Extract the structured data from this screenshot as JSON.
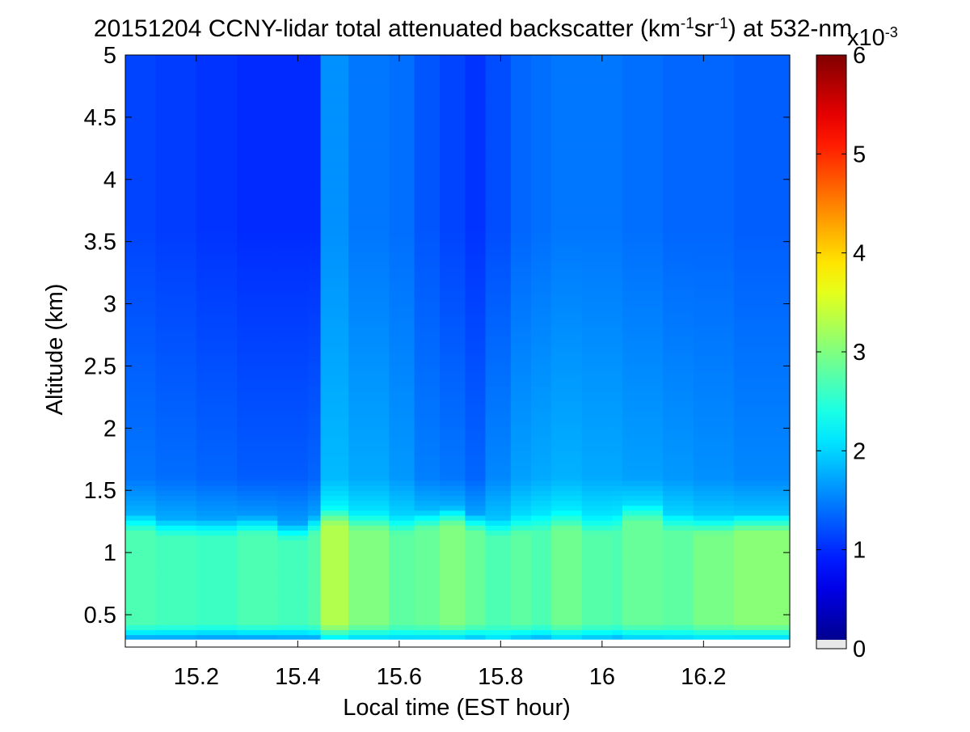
{
  "chart_data": {
    "type": "heatmap",
    "title_parts": {
      "prefix": "20151204 CCNY-lidar total attenuated backscatter (km",
      "sup1": "-1",
      "mid": "sr",
      "sup2": "-1",
      "suffix": ") at 532-nm"
    },
    "xlabel": "Local time (EST hour)",
    "ylabel": "Altitude (km)",
    "xlim": [
      15.06,
      16.37
    ],
    "ylim": [
      0.24,
      5
    ],
    "x_ticks": [
      "15.2",
      "15.4",
      "15.6",
      "15.8",
      "16",
      "16.2"
    ],
    "x_tick_values": [
      15.2,
      15.4,
      15.6,
      15.8,
      16.0,
      16.2
    ],
    "y_ticks": [
      "0.5",
      "1",
      "1.5",
      "2",
      "2.5",
      "3",
      "3.5",
      "4",
      "4.5",
      "5"
    ],
    "y_tick_values": [
      0.5,
      1,
      1.5,
      2,
      2.5,
      3,
      3.5,
      4,
      4.5,
      5
    ],
    "data_bottom_km": 0.3,
    "colormap": "jet",
    "colorbar": {
      "clim": [
        0,
        0.006
      ],
      "ticks": [
        "0",
        "1",
        "2",
        "3",
        "4",
        "5",
        "6"
      ],
      "tick_values": [
        0,
        1,
        2,
        3,
        4,
        5,
        6
      ],
      "exponent_base": "x10",
      "exponent": "-3",
      "below_min_color": "#e8e8e8"
    },
    "profile_units": "x10^-3 km^-1 sr^-1",
    "time_profiles": [
      {
        "t": 15.06,
        "near": 1.6,
        "pbl": 2.7,
        "top": 1.22,
        "free": 1.45,
        "aloft": 1.15
      },
      {
        "t": 15.12,
        "near": 1.6,
        "pbl": 2.65,
        "top": 1.18,
        "free": 1.4,
        "aloft": 1.1
      },
      {
        "t": 15.2,
        "near": 1.55,
        "pbl": 2.6,
        "top": 1.18,
        "free": 1.35,
        "aloft": 1.05
      },
      {
        "t": 15.28,
        "near": 1.55,
        "pbl": 2.7,
        "top": 1.2,
        "free": 1.3,
        "aloft": 1.0
      },
      {
        "t": 15.36,
        "near": 1.6,
        "pbl": 2.65,
        "top": 1.15,
        "free": 1.3,
        "aloft": 1.0
      },
      {
        "t": 15.42,
        "near": 1.6,
        "pbl": 2.75,
        "top": 1.2,
        "free": 1.35,
        "aloft": 1.0
      },
      {
        "t": 15.445,
        "near": 2.0,
        "pbl": 3.3,
        "top": 1.27,
        "free": 1.85,
        "aloft": 1.6
      },
      {
        "t": 15.5,
        "near": 1.9,
        "pbl": 3.0,
        "top": 1.23,
        "free": 1.75,
        "aloft": 1.45
      },
      {
        "t": 15.58,
        "near": 1.9,
        "pbl": 2.8,
        "top": 1.2,
        "free": 1.65,
        "aloft": 1.4
      },
      {
        "t": 15.63,
        "near": 1.9,
        "pbl": 2.85,
        "top": 1.24,
        "free": 1.5,
        "aloft": 1.25
      },
      {
        "t": 15.68,
        "near": 1.9,
        "pbl": 3.0,
        "top": 1.27,
        "free": 1.45,
        "aloft": 1.15
      },
      {
        "t": 15.73,
        "near": 1.8,
        "pbl": 2.85,
        "top": 1.22,
        "free": 1.35,
        "aloft": 1.05
      },
      {
        "t": 15.77,
        "near": 2.0,
        "pbl": 2.7,
        "top": 1.18,
        "free": 1.55,
        "aloft": 1.2
      },
      {
        "t": 15.82,
        "near": 1.8,
        "pbl": 2.8,
        "top": 1.2,
        "free": 1.7,
        "aloft": 1.35
      },
      {
        "t": 15.86,
        "near": 1.7,
        "pbl": 2.7,
        "top": 1.22,
        "free": 1.75,
        "aloft": 1.4
      },
      {
        "t": 15.9,
        "near": 1.9,
        "pbl": 2.9,
        "top": 1.24,
        "free": 1.8,
        "aloft": 1.45
      },
      {
        "t": 15.96,
        "near": 1.8,
        "pbl": 2.75,
        "top": 1.2,
        "free": 1.75,
        "aloft": 1.45
      },
      {
        "t": 16.02,
        "near": 1.7,
        "pbl": 2.7,
        "top": 1.22,
        "free": 1.75,
        "aloft": 1.45
      },
      {
        "t": 16.04,
        "near": 1.85,
        "pbl": 2.85,
        "top": 1.3,
        "free": 1.7,
        "aloft": 1.4
      },
      {
        "t": 16.12,
        "near": 1.9,
        "pbl": 2.8,
        "top": 1.22,
        "free": 1.65,
        "aloft": 1.35
      },
      {
        "t": 16.18,
        "near": 1.95,
        "pbl": 2.95,
        "top": 1.2,
        "free": 1.6,
        "aloft": 1.35
      },
      {
        "t": 16.26,
        "near": 1.9,
        "pbl": 3.05,
        "top": 1.22,
        "free": 1.55,
        "aloft": 1.3
      },
      {
        "t": 16.37,
        "near": 1.9,
        "pbl": 2.95,
        "top": 1.22,
        "free": 1.5,
        "aloft": 1.3
      }
    ]
  }
}
